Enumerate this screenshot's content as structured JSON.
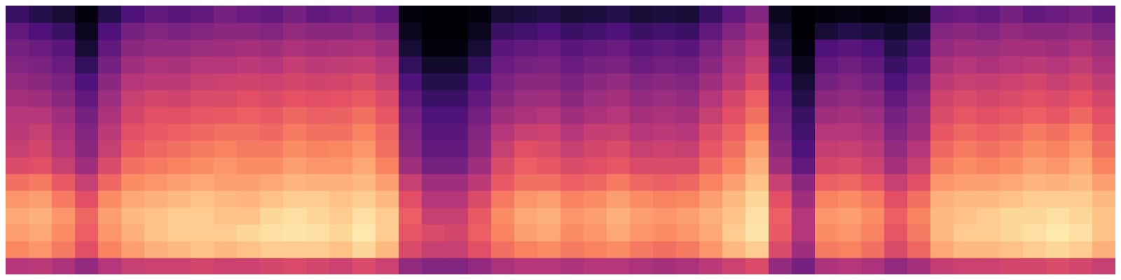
{
  "chart_data": {
    "type": "heatmap",
    "tick_labels": false,
    "color": "magma",
    "xlim": [
      0,
      48
    ],
    "ylim": [
      0,
      16
    ],
    "zlim": [
      0,
      1
    ],
    "z": [
      [
        0.5,
        0.52,
        0.48,
        0.42,
        0.5,
        0.55,
        0.56,
        0.56,
        0.58,
        0.56,
        0.56,
        0.58,
        0.6,
        0.58,
        0.56,
        0.6,
        0.56,
        0.42,
        0.38,
        0.38,
        0.42,
        0.48,
        0.5,
        0.5,
        0.48,
        0.5,
        0.5,
        0.48,
        0.46,
        0.48,
        0.52,
        0.56,
        0.6,
        0.42,
        0.35,
        0.48,
        0.5,
        0.48,
        0.42,
        0.46,
        0.54,
        0.56,
        0.56,
        0.58,
        0.58,
        0.6,
        0.58,
        0.55
      ],
      [
        0.75,
        0.78,
        0.72,
        0.62,
        0.74,
        0.8,
        0.84,
        0.86,
        0.88,
        0.86,
        0.88,
        0.9,
        0.9,
        0.9,
        0.88,
        0.92,
        0.86,
        0.6,
        0.55,
        0.55,
        0.62,
        0.7,
        0.74,
        0.76,
        0.72,
        0.74,
        0.76,
        0.72,
        0.7,
        0.72,
        0.78,
        0.86,
        0.9,
        0.6,
        0.45,
        0.72,
        0.74,
        0.7,
        0.6,
        0.68,
        0.82,
        0.86,
        0.86,
        0.88,
        0.9,
        0.92,
        0.9,
        0.84
      ],
      [
        0.8,
        0.82,
        0.76,
        0.66,
        0.78,
        0.84,
        0.88,
        0.9,
        0.9,
        0.9,
        0.92,
        0.94,
        0.95,
        0.94,
        0.92,
        0.96,
        0.9,
        0.64,
        0.6,
        0.58,
        0.66,
        0.74,
        0.8,
        0.82,
        0.76,
        0.78,
        0.82,
        0.78,
        0.76,
        0.78,
        0.82,
        0.9,
        0.95,
        0.65,
        0.5,
        0.76,
        0.78,
        0.74,
        0.64,
        0.72,
        0.86,
        0.9,
        0.9,
        0.92,
        0.94,
        0.96,
        0.94,
        0.88
      ],
      [
        0.82,
        0.84,
        0.78,
        0.68,
        0.8,
        0.86,
        0.88,
        0.9,
        0.9,
        0.88,
        0.88,
        0.92,
        0.94,
        0.92,
        0.9,
        0.94,
        0.9,
        0.66,
        0.55,
        0.55,
        0.65,
        0.76,
        0.82,
        0.84,
        0.78,
        0.8,
        0.84,
        0.8,
        0.78,
        0.8,
        0.84,
        0.88,
        0.94,
        0.66,
        0.5,
        0.78,
        0.8,
        0.76,
        0.66,
        0.74,
        0.86,
        0.88,
        0.9,
        0.92,
        0.92,
        0.94,
        0.92,
        0.88
      ],
      [
        0.78,
        0.8,
        0.72,
        0.62,
        0.76,
        0.82,
        0.84,
        0.86,
        0.88,
        0.86,
        0.85,
        0.88,
        0.9,
        0.9,
        0.88,
        0.9,
        0.86,
        0.62,
        0.5,
        0.5,
        0.6,
        0.72,
        0.78,
        0.8,
        0.74,
        0.76,
        0.8,
        0.76,
        0.74,
        0.75,
        0.8,
        0.86,
        0.92,
        0.62,
        0.45,
        0.74,
        0.76,
        0.72,
        0.62,
        0.7,
        0.84,
        0.86,
        0.86,
        0.88,
        0.9,
        0.9,
        0.9,
        0.86
      ],
      [
        0.7,
        0.72,
        0.65,
        0.55,
        0.68,
        0.76,
        0.78,
        0.8,
        0.82,
        0.8,
        0.8,
        0.82,
        0.85,
        0.84,
        0.84,
        0.86,
        0.8,
        0.55,
        0.45,
        0.45,
        0.52,
        0.65,
        0.7,
        0.7,
        0.66,
        0.68,
        0.72,
        0.68,
        0.66,
        0.68,
        0.74,
        0.8,
        0.88,
        0.55,
        0.4,
        0.66,
        0.68,
        0.64,
        0.55,
        0.62,
        0.78,
        0.8,
        0.8,
        0.82,
        0.85,
        0.84,
        0.86,
        0.8
      ],
      [
        0.6,
        0.62,
        0.55,
        0.45,
        0.6,
        0.7,
        0.72,
        0.74,
        0.76,
        0.78,
        0.76,
        0.76,
        0.8,
        0.78,
        0.78,
        0.82,
        0.74,
        0.45,
        0.35,
        0.35,
        0.45,
        0.6,
        0.66,
        0.64,
        0.6,
        0.62,
        0.64,
        0.6,
        0.6,
        0.6,
        0.68,
        0.74,
        0.84,
        0.45,
        0.3,
        0.58,
        0.6,
        0.56,
        0.46,
        0.55,
        0.72,
        0.76,
        0.74,
        0.76,
        0.8,
        0.78,
        0.82,
        0.74
      ],
      [
        0.55,
        0.58,
        0.5,
        0.4,
        0.55,
        0.65,
        0.68,
        0.7,
        0.72,
        0.74,
        0.72,
        0.72,
        0.76,
        0.74,
        0.75,
        0.78,
        0.7,
        0.4,
        0.3,
        0.3,
        0.4,
        0.55,
        0.62,
        0.6,
        0.55,
        0.58,
        0.6,
        0.55,
        0.56,
        0.55,
        0.64,
        0.7,
        0.8,
        0.4,
        0.25,
        0.54,
        0.55,
        0.52,
        0.42,
        0.5,
        0.68,
        0.72,
        0.7,
        0.72,
        0.76,
        0.74,
        0.78,
        0.7
      ],
      [
        0.52,
        0.55,
        0.48,
        0.38,
        0.52,
        0.62,
        0.65,
        0.66,
        0.68,
        0.7,
        0.7,
        0.68,
        0.72,
        0.7,
        0.7,
        0.74,
        0.68,
        0.38,
        0.28,
        0.28,
        0.38,
        0.5,
        0.55,
        0.56,
        0.5,
        0.54,
        0.55,
        0.5,
        0.52,
        0.5,
        0.6,
        0.66,
        0.75,
        0.36,
        0.22,
        0.5,
        0.5,
        0.48,
        0.38,
        0.45,
        0.64,
        0.68,
        0.66,
        0.68,
        0.72,
        0.7,
        0.74,
        0.66
      ],
      [
        0.5,
        0.5,
        0.45,
        0.35,
        0.48,
        0.58,
        0.62,
        0.62,
        0.64,
        0.65,
        0.66,
        0.65,
        0.68,
        0.66,
        0.67,
        0.7,
        0.64,
        0.35,
        0.25,
        0.25,
        0.34,
        0.45,
        0.48,
        0.5,
        0.45,
        0.48,
        0.5,
        0.46,
        0.48,
        0.46,
        0.55,
        0.62,
        0.7,
        0.33,
        0.2,
        0.45,
        0.46,
        0.44,
        0.35,
        0.42,
        0.6,
        0.64,
        0.62,
        0.64,
        0.66,
        0.64,
        0.68,
        0.62
      ],
      [
        0.46,
        0.45,
        0.4,
        0.3,
        0.44,
        0.55,
        0.58,
        0.57,
        0.6,
        0.6,
        0.62,
        0.6,
        0.63,
        0.62,
        0.63,
        0.65,
        0.6,
        0.3,
        0.2,
        0.2,
        0.3,
        0.4,
        0.44,
        0.45,
        0.4,
        0.44,
        0.46,
        0.42,
        0.44,
        0.42,
        0.5,
        0.58,
        0.66,
        0.3,
        0.15,
        0.4,
        0.42,
        0.4,
        0.3,
        0.38,
        0.57,
        0.6,
        0.58,
        0.6,
        0.62,
        0.6,
        0.63,
        0.58
      ],
      [
        0.42,
        0.4,
        0.36,
        0.25,
        0.4,
        0.5,
        0.52,
        0.52,
        0.55,
        0.56,
        0.57,
        0.56,
        0.58,
        0.57,
        0.58,
        0.6,
        0.55,
        0.25,
        0.15,
        0.15,
        0.25,
        0.36,
        0.4,
        0.4,
        0.36,
        0.4,
        0.42,
        0.38,
        0.4,
        0.38,
        0.45,
        0.52,
        0.6,
        0.25,
        0.1,
        0.35,
        0.38,
        0.35,
        0.25,
        0.33,
        0.52,
        0.55,
        0.54,
        0.56,
        0.58,
        0.55,
        0.58,
        0.53
      ],
      [
        0.38,
        0.36,
        0.32,
        0.18,
        0.35,
        0.45,
        0.48,
        0.47,
        0.5,
        0.5,
        0.52,
        0.5,
        0.54,
        0.52,
        0.53,
        0.54,
        0.5,
        0.18,
        0.08,
        0.08,
        0.18,
        0.32,
        0.35,
        0.36,
        0.32,
        0.35,
        0.36,
        0.32,
        0.34,
        0.33,
        0.4,
        0.48,
        0.55,
        0.2,
        0.05,
        0.3,
        0.33,
        0.3,
        0.2,
        0.28,
        0.47,
        0.5,
        0.48,
        0.5,
        0.52,
        0.5,
        0.53,
        0.48
      ],
      [
        0.35,
        0.32,
        0.28,
        0.1,
        0.3,
        0.4,
        0.42,
        0.42,
        0.44,
        0.45,
        0.46,
        0.45,
        0.48,
        0.46,
        0.47,
        0.48,
        0.45,
        0.1,
        0.02,
        0.02,
        0.1,
        0.28,
        0.3,
        0.32,
        0.28,
        0.3,
        0.32,
        0.28,
        0.3,
        0.28,
        0.36,
        0.44,
        0.5,
        0.15,
        0.02,
        0.25,
        0.28,
        0.25,
        0.15,
        0.22,
        0.42,
        0.45,
        0.44,
        0.46,
        0.46,
        0.45,
        0.48,
        0.44
      ],
      [
        0.3,
        0.25,
        0.2,
        0.05,
        0.25,
        0.35,
        0.38,
        0.36,
        0.38,
        0.4,
        0.4,
        0.38,
        0.42,
        0.4,
        0.4,
        0.42,
        0.38,
        0.05,
        0,
        0,
        0.05,
        0.2,
        0.22,
        0.25,
        0.2,
        0.22,
        0.25,
        0.2,
        0.22,
        0.2,
        0.3,
        0.38,
        0.45,
        0.1,
        0,
        0.1,
        0.15,
        0.12,
        0.08,
        0.15,
        0.38,
        0.4,
        0.38,
        0.42,
        0.4,
        0.4,
        0.42,
        0.38
      ],
      [
        0.2,
        0.15,
        0.1,
        0.02,
        0.15,
        0.25,
        0.3,
        0.28,
        0.3,
        0.35,
        0.32,
        0.3,
        0.35,
        0.3,
        0.32,
        0.35,
        0.3,
        0.02,
        0,
        0,
        0.02,
        0.1,
        0.12,
        0.15,
        0.1,
        0.12,
        0.15,
        0.1,
        0.12,
        0.1,
        0.2,
        0.3,
        0.38,
        0.05,
        0,
        0.02,
        0.03,
        0.02,
        0.03,
        0.05,
        0.3,
        0.32,
        0.3,
        0.35,
        0.3,
        0.32,
        0.35,
        0.3
      ]
    ]
  }
}
